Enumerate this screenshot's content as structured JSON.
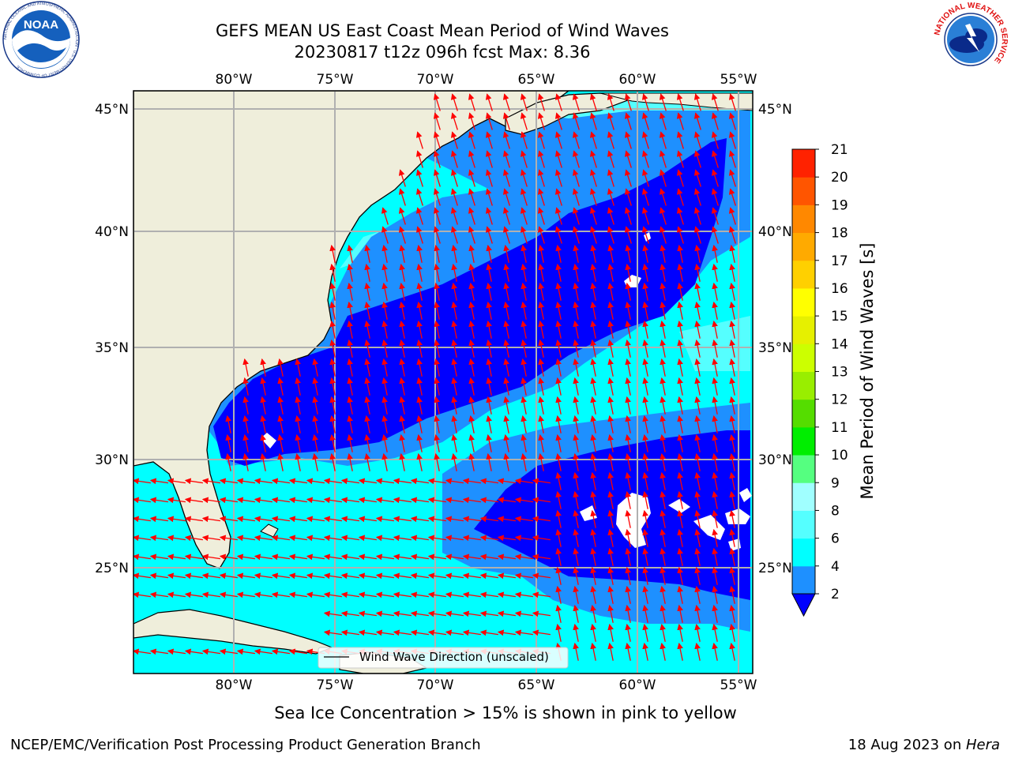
{
  "header": {
    "title_line1": "GEFS MEAN US East Coast Mean Period of Wind Waves",
    "title_line2": "20230817 t12z 096h fcst   Max: 8.36"
  },
  "logos": {
    "left": "NOAA",
    "left_ring": "NATIONAL OCEANIC AND ATMOSPHERIC ADMINISTRATION · U.S. DEPARTMENT OF COMMERCE",
    "right_ring": "NATIONAL WEATHER SERVICE"
  },
  "map": {
    "lon_labels": [
      "80°W",
      "75°W",
      "70°W",
      "65°W",
      "60°W",
      "55°W"
    ],
    "lat_labels": [
      "45°N",
      "40°N",
      "35°N",
      "30°N",
      "25°N"
    ],
    "legend_label": "Wind Wave Direction (unscaled)",
    "colors": {
      "land": "#efeedb",
      "arrow": "#ff0000",
      "band_2_4": "#0000ff",
      "band_4_6": "#1e90ff",
      "band_6_8": "#00ffff",
      "band_8_9": "#55ffff"
    }
  },
  "colorbar": {
    "label": "Mean Period of Wind Waves [s]",
    "ticks": [
      "2",
      "4",
      "6",
      "8",
      "9",
      "10",
      "11",
      "12",
      "13",
      "14",
      "15",
      "16",
      "17",
      "18",
      "19",
      "20",
      "21"
    ],
    "colors": [
      "#0000ff",
      "#1e90ff",
      "#00ffff",
      "#55ffff",
      "#a0ffff",
      "#55ff80",
      "#00ee00",
      "#55dd00",
      "#99ee00",
      "#ccff00",
      "#e6f000",
      "#ffff00",
      "#ffd000",
      "#ffaa00",
      "#ff8800",
      "#ff5500",
      "#ff2200",
      "#ff0000"
    ]
  },
  "caption": "Sea Ice Concentration > 15% is shown in pink to yellow",
  "footer": {
    "left": "NCEP/EMC/Verification Post Processing Product Generation Branch",
    "right_date": "18 Aug 2023 on ",
    "right_host": "Hera"
  }
}
